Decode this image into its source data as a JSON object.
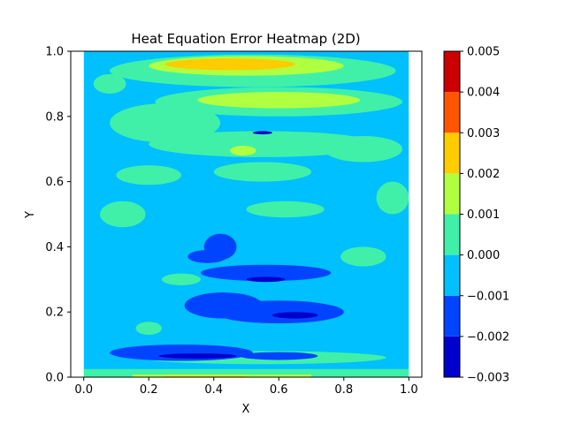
{
  "chart_data": {
    "type": "heatmap",
    "title": "Heat Equation Error Heatmap (2D)",
    "xlabel": "X",
    "ylabel": "Y",
    "xlim": [
      -0.04,
      1.04
    ],
    "ylim": [
      0.0,
      1.0
    ],
    "x_ticks": [
      "0.0",
      "0.2",
      "0.4",
      "0.6",
      "0.8",
      "1.0"
    ],
    "y_ticks": [
      "0.0",
      "0.2",
      "0.4",
      "0.6",
      "0.8",
      "1.0"
    ],
    "grid": false,
    "data_extent_x": [
      0.0,
      1.0
    ],
    "data_extent_y": [
      0.0,
      1.0
    ],
    "colorbar": {
      "levels": [
        -0.003,
        -0.002,
        -0.001,
        0.0,
        0.001,
        0.002,
        0.003,
        0.004,
        0.005
      ],
      "tick_labels": [
        "−0.003",
        "−0.002",
        "−0.001",
        "0.000",
        "0.001",
        "0.002",
        "0.003",
        "0.004",
        "0.005"
      ],
      "colors": [
        "#0000cd",
        "#0044ff",
        "#00c0ff",
        "#40f0a8",
        "#b0ff40",
        "#ffcc00",
        "#ff5500",
        "#cc0000"
      ]
    },
    "base_level_color": "#00c0ff",
    "regions": [
      {
        "band": 3,
        "shape": "ellipse",
        "cx": 0.52,
        "cy": 0.94,
        "rx": 0.44,
        "ry": 0.05
      },
      {
        "band": 4,
        "shape": "ellipse",
        "cx": 0.5,
        "cy": 0.955,
        "rx": 0.3,
        "ry": 0.03
      },
      {
        "band": 5,
        "shape": "ellipse",
        "cx": 0.45,
        "cy": 0.96,
        "rx": 0.2,
        "ry": 0.018
      },
      {
        "band": 3,
        "shape": "ellipse",
        "cx": 0.6,
        "cy": 0.845,
        "rx": 0.38,
        "ry": 0.045
      },
      {
        "band": 4,
        "shape": "ellipse",
        "cx": 0.6,
        "cy": 0.85,
        "rx": 0.25,
        "ry": 0.025
      },
      {
        "band": 3,
        "shape": "ellipse",
        "cx": 0.25,
        "cy": 0.78,
        "rx": 0.17,
        "ry": 0.06
      },
      {
        "band": 3,
        "shape": "ellipse",
        "cx": 0.55,
        "cy": 0.715,
        "rx": 0.35,
        "ry": 0.04
      },
      {
        "band": 4,
        "shape": "ellipse",
        "cx": 0.49,
        "cy": 0.695,
        "rx": 0.04,
        "ry": 0.015
      },
      {
        "band": 3,
        "shape": "ellipse",
        "cx": 0.86,
        "cy": 0.7,
        "rx": 0.12,
        "ry": 0.04
      },
      {
        "band": 3,
        "shape": "ellipse",
        "cx": 0.2,
        "cy": 0.62,
        "rx": 0.1,
        "ry": 0.03
      },
      {
        "band": 3,
        "shape": "ellipse",
        "cx": 0.55,
        "cy": 0.63,
        "rx": 0.15,
        "ry": 0.03
      },
      {
        "band": 3,
        "shape": "ellipse",
        "cx": 0.12,
        "cy": 0.5,
        "rx": 0.07,
        "ry": 0.04
      },
      {
        "band": 3,
        "shape": "ellipse",
        "cx": 0.62,
        "cy": 0.515,
        "rx": 0.12,
        "ry": 0.025
      },
      {
        "band": 3,
        "shape": "ellipse",
        "cx": 0.86,
        "cy": 0.37,
        "rx": 0.07,
        "ry": 0.03
      },
      {
        "band": 3,
        "shape": "ellipse",
        "cx": 0.3,
        "cy": 0.3,
        "rx": 0.06,
        "ry": 0.018
      },
      {
        "band": 3,
        "shape": "ellipse",
        "cx": 0.2,
        "cy": 0.15,
        "rx": 0.04,
        "ry": 0.02
      },
      {
        "band": 3,
        "shape": "ellipse",
        "cx": 0.55,
        "cy": 0.06,
        "rx": 0.38,
        "ry": 0.02
      },
      {
        "band": 3,
        "shape": "ellipse",
        "cx": 0.08,
        "cy": 0.9,
        "rx": 0.05,
        "ry": 0.03
      },
      {
        "band": 3,
        "shape": "ellipse",
        "cx": 0.95,
        "cy": 0.55,
        "rx": 0.05,
        "ry": 0.05
      },
      {
        "band": 1,
        "shape": "ellipse",
        "cx": 0.42,
        "cy": 0.4,
        "rx": 0.05,
        "ry": 0.04
      },
      {
        "band": 1,
        "shape": "ellipse",
        "cx": 0.38,
        "cy": 0.37,
        "rx": 0.06,
        "ry": 0.02
      },
      {
        "band": 1,
        "shape": "ellipse",
        "cx": 0.56,
        "cy": 0.32,
        "rx": 0.2,
        "ry": 0.025
      },
      {
        "band": 1,
        "shape": "ellipse",
        "cx": 0.43,
        "cy": 0.22,
        "rx": 0.12,
        "ry": 0.04
      },
      {
        "band": 1,
        "shape": "ellipse",
        "cx": 0.6,
        "cy": 0.2,
        "rx": 0.2,
        "ry": 0.035
      },
      {
        "band": 1,
        "shape": "ellipse",
        "cx": 0.3,
        "cy": 0.075,
        "rx": 0.22,
        "ry": 0.025
      },
      {
        "band": 1,
        "shape": "ellipse",
        "cx": 0.6,
        "cy": 0.065,
        "rx": 0.12,
        "ry": 0.012
      },
      {
        "band": 0,
        "shape": "ellipse",
        "cx": 0.35,
        "cy": 0.065,
        "rx": 0.12,
        "ry": 0.008
      },
      {
        "band": 0,
        "shape": "ellipse",
        "cx": 0.65,
        "cy": 0.19,
        "rx": 0.07,
        "ry": 0.01
      },
      {
        "band": 0,
        "shape": "ellipse",
        "cx": 0.56,
        "cy": 0.3,
        "rx": 0.06,
        "ry": 0.008
      },
      {
        "band": 0,
        "shape": "ellipse",
        "cx": 0.55,
        "cy": 0.75,
        "rx": 0.03,
        "ry": 0.005
      },
      {
        "band": 3,
        "shape": "rect",
        "x0": 0.0,
        "x1": 1.0,
        "y0": 0.0,
        "y1": 0.025
      },
      {
        "band": 4,
        "shape": "rect",
        "x0": 0.15,
        "x1": 0.7,
        "y0": 0.0,
        "y1": 0.008
      },
      {
        "band": 5,
        "shape": "rect",
        "x0": 0.25,
        "x1": 0.5,
        "y0": 0.0,
        "y1": 0.004
      }
    ]
  }
}
